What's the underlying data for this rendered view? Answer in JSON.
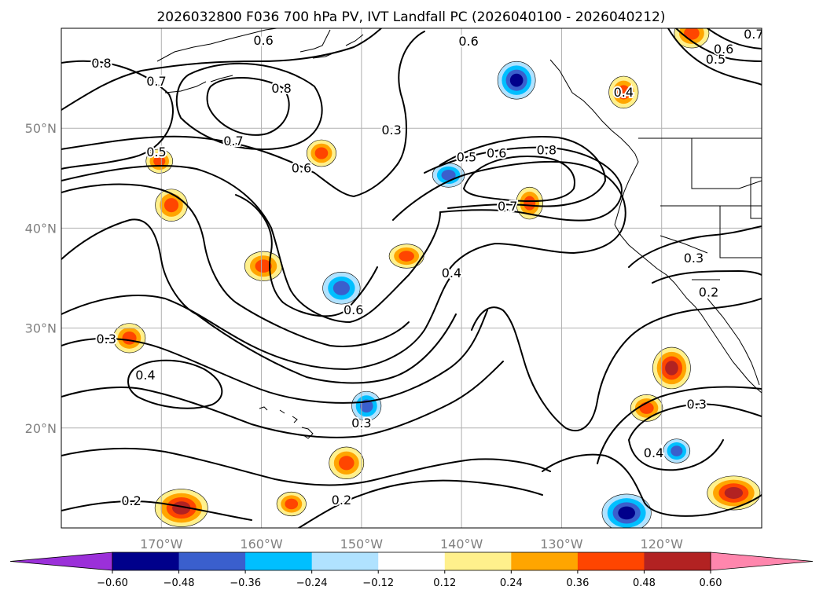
{
  "chart_data": {
    "type": "contour_map",
    "title": "2026032800 F036 700 hPa PV, IVT Landfall PC (2026040100 - 2026040212)",
    "x_tick_labels": [
      "170°W",
      "160°W",
      "150°W",
      "140°W",
      "130°W",
      "120°W"
    ],
    "x_tick_values": [
      -170,
      -160,
      -150,
      -140,
      -130,
      -120
    ],
    "y_tick_labels": [
      "20°N",
      "30°N",
      "40°N",
      "50°N"
    ],
    "y_tick_values": [
      20,
      30,
      40,
      50
    ],
    "lon_range": [
      -180,
      -110
    ],
    "lat_range": [
      10,
      60
    ],
    "contour_levels": [
      0.2,
      0.3,
      0.4,
      0.5,
      0.6,
      0.7,
      0.8
    ],
    "contour_labels": [
      {
        "text": "0.8",
        "lon": -176,
        "lat": 56.5
      },
      {
        "text": "0.7",
        "lon": -170.5,
        "lat": 54.7
      },
      {
        "text": "0.6",
        "lon": -159.8,
        "lat": 58.8
      },
      {
        "text": "0.8",
        "lon": -158,
        "lat": 54
      },
      {
        "text": "0.7",
        "lon": -162.8,
        "lat": 48.7
      },
      {
        "text": "0.5",
        "lon": -170.5,
        "lat": 47.6
      },
      {
        "text": "0.6",
        "lon": -156,
        "lat": 46
      },
      {
        "text": "0.3",
        "lon": -147,
        "lat": 49.8
      },
      {
        "text": "0.6",
        "lon": -139.3,
        "lat": 58.7
      },
      {
        "text": "0.5",
        "lon": -139.5,
        "lat": 47.1
      },
      {
        "text": "0.6",
        "lon": -136.5,
        "lat": 47.5
      },
      {
        "text": "0.8",
        "lon": -131.5,
        "lat": 47.8
      },
      {
        "text": "0.7",
        "lon": -135.4,
        "lat": 42.2
      },
      {
        "text": "0.4",
        "lon": -141,
        "lat": 35.5
      },
      {
        "text": "0.6",
        "lon": -150.8,
        "lat": 31.8
      },
      {
        "text": "0.3",
        "lon": -175.5,
        "lat": 28.9
      },
      {
        "text": "0.4",
        "lon": -171.6,
        "lat": 25.3
      },
      {
        "text": "0.3",
        "lon": -150,
        "lat": 20.5
      },
      {
        "text": "0.2",
        "lon": -152,
        "lat": 12.8
      },
      {
        "text": "0.2",
        "lon": -173,
        "lat": 12.7
      },
      {
        "text": "0.3",
        "lon": -116.8,
        "lat": 37
      },
      {
        "text": "0.2",
        "lon": -115.3,
        "lat": 33.6
      },
      {
        "text": "0.3",
        "lon": -116.5,
        "lat": 22.4
      },
      {
        "text": "0.4",
        "lon": -120.8,
        "lat": 17.5
      },
      {
        "text": "0.4",
        "lon": -123.8,
        "lat": 53.6
      },
      {
        "text": "0.5",
        "lon": -114.6,
        "lat": 56.9
      },
      {
        "text": "0.6",
        "lon": -113.8,
        "lat": 57.9
      },
      {
        "text": "0.7",
        "lon": -110.8,
        "lat": 59.4
      }
    ],
    "filled_regions": [
      {
        "sign": "positive",
        "lon": -170.2,
        "lat": 46.7,
        "peak": 0.4
      },
      {
        "sign": "positive",
        "lon": -169,
        "lat": 42.3,
        "peak": 0.4
      },
      {
        "sign": "positive",
        "lon": -159.8,
        "lat": 36.2,
        "peak": 0.4
      },
      {
        "sign": "positive",
        "lon": -154,
        "lat": 47.5,
        "peak": 0.4
      },
      {
        "sign": "positive",
        "lon": -145.5,
        "lat": 37.2,
        "peak": 0.4
      },
      {
        "sign": "positive",
        "lon": -133.2,
        "lat": 42.5,
        "peak": 0.4
      },
      {
        "sign": "positive",
        "lon": -173.2,
        "lat": 29,
        "peak": 0.4
      },
      {
        "sign": "positive",
        "lon": -168,
        "lat": 12,
        "peak": 0.5
      },
      {
        "sign": "positive",
        "lon": -157,
        "lat": 12.4,
        "peak": 0.4
      },
      {
        "sign": "positive",
        "lon": -151.5,
        "lat": 16.5,
        "peak": 0.4
      },
      {
        "sign": "positive",
        "lon": -119,
        "lat": 26,
        "peak": 0.5
      },
      {
        "sign": "positive",
        "lon": -121.5,
        "lat": 22,
        "peak": 0.4
      },
      {
        "sign": "positive",
        "lon": -112.8,
        "lat": 13.5,
        "peak": 0.5
      },
      {
        "sign": "positive",
        "lon": -123.8,
        "lat": 53.6,
        "peak": 0.4
      },
      {
        "sign": "positive",
        "lon": -117,
        "lat": 59.5,
        "peak": 0.4
      },
      {
        "sign": "negative",
        "lon": -134.5,
        "lat": 54.8,
        "peak": -0.55
      },
      {
        "sign": "negative",
        "lon": -141.3,
        "lat": 45.3,
        "peak": -0.4
      },
      {
        "sign": "negative",
        "lon": -152,
        "lat": 34,
        "peak": -0.4
      },
      {
        "sign": "negative",
        "lon": -149.5,
        "lat": 22.2,
        "peak": -0.36
      },
      {
        "sign": "negative",
        "lon": -123.5,
        "lat": 11.5,
        "peak": -0.6
      },
      {
        "sign": "negative",
        "lon": -118.5,
        "lat": 17.7,
        "peak": -0.45
      }
    ],
    "colorbar": {
      "tick_labels": [
        "−0.60",
        "−0.48",
        "−0.36",
        "−0.24",
        "−0.12",
        "0.12",
        "0.24",
        "0.36",
        "0.48",
        "0.60"
      ],
      "boundaries": [
        -0.6,
        -0.48,
        -0.36,
        -0.24,
        -0.12,
        0.12,
        0.24,
        0.36,
        0.48,
        0.6
      ],
      "colors": [
        "#9b30d9",
        "#00008b",
        "#3a5fcd",
        "#00bfff",
        "#b0e2ff",
        "#ffffff",
        "#fff08c",
        "#ffa500",
        "#ff4500",
        "#b22222",
        "#ff86ad"
      ],
      "extend": "both"
    }
  }
}
